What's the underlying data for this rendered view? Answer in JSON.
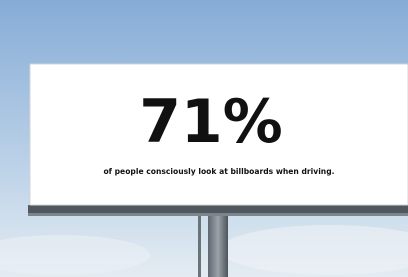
{
  "billboard": {
    "headline": "71%",
    "caption": "of people consciously look at billboards when driving."
  }
}
